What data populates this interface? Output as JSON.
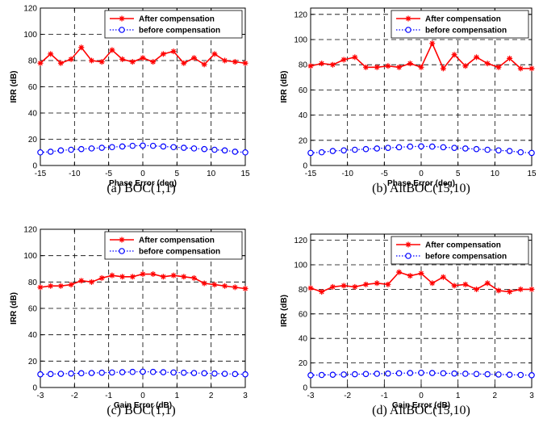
{
  "chart_data": [
    {
      "type": "line",
      "caption": "(a) BOC(1,1)",
      "xlabel": "Phase Error (deg)",
      "ylabel": "IRR (dB)",
      "xlim": [
        -15,
        15
      ],
      "ylim": [
        0,
        120
      ],
      "xticks": [
        -15,
        -10,
        -5,
        0,
        5,
        10,
        15
      ],
      "yticks": [
        0,
        20,
        40,
        60,
        80,
        100,
        120
      ],
      "grid": true,
      "legend_position": "top-right",
      "x": [
        -15,
        -13.5,
        -12,
        -10.5,
        -9,
        -7.5,
        -6,
        -4.5,
        -3,
        -1.5,
        0,
        1.5,
        3,
        4.5,
        6,
        7.5,
        9,
        10.5,
        12,
        13.5,
        15
      ],
      "series": [
        {
          "name": "After compensation",
          "color": "#ff0000",
          "marker": "star",
          "style": "solid",
          "values": [
            78,
            85,
            78,
            81,
            90,
            80,
            79,
            88,
            81,
            79,
            82,
            79,
            85,
            87,
            78,
            82,
            77,
            85,
            80,
            79,
            78
          ]
        },
        {
          "name": "before compensation",
          "color": "#0000ff",
          "marker": "circle",
          "style": "dotted",
          "values": [
            10,
            10.5,
            11.5,
            12,
            12.5,
            13,
            13.5,
            14,
            14.5,
            15,
            15.2,
            15,
            14.5,
            14,
            13.5,
            13,
            12.5,
            12,
            11.5,
            10.5,
            10
          ]
        }
      ]
    },
    {
      "type": "line",
      "caption": "(b) AltBOC(15,10)",
      "xlabel": "Phase Error (deg)",
      "ylabel": "IRR (dB)",
      "xlim": [
        -15,
        15
      ],
      "ylim": [
        0,
        125
      ],
      "xticks": [
        -15,
        -10,
        -5,
        0,
        5,
        10,
        15
      ],
      "yticks": [
        0,
        20,
        40,
        60,
        80,
        100,
        120
      ],
      "grid": true,
      "legend_position": "top-right",
      "x": [
        -15,
        -13.5,
        -12,
        -10.5,
        -9,
        -7.5,
        -6,
        -4.5,
        -3,
        -1.5,
        0,
        1.5,
        3,
        4.5,
        6,
        7.5,
        9,
        10.5,
        12,
        13.5,
        15
      ],
      "series": [
        {
          "name": "After compensation",
          "color": "#ff0000",
          "marker": "star",
          "style": "solid",
          "values": [
            79,
            81,
            80,
            84,
            86,
            78,
            78,
            79,
            78,
            81,
            78,
            97,
            77,
            88,
            79,
            86,
            81,
            78,
            85,
            77,
            77
          ]
        },
        {
          "name": "before compensation",
          "color": "#0000ff",
          "marker": "circle",
          "style": "dotted",
          "values": [
            10,
            10.5,
            11.5,
            12,
            12.5,
            13,
            13.5,
            14,
            14.5,
            15,
            15.2,
            15,
            14.5,
            14,
            13.5,
            13,
            12.5,
            12,
            11.5,
            10.5,
            10
          ]
        }
      ]
    },
    {
      "type": "line",
      "caption": "(c) BOC(1,1)",
      "xlabel": "Gain Error (dB)",
      "ylabel": "IRR (dB)",
      "xlim": [
        -3,
        3
      ],
      "ylim": [
        0,
        120
      ],
      "xticks": [
        -3,
        -2,
        -1,
        0,
        1,
        2,
        3
      ],
      "yticks": [
        0,
        20,
        40,
        60,
        80,
        100,
        120
      ],
      "grid": true,
      "legend_position": "top-right",
      "x": [
        -3,
        -2.7,
        -2.4,
        -2.1,
        -1.8,
        -1.5,
        -1.2,
        -0.9,
        -0.6,
        -0.3,
        0,
        0.3,
        0.6,
        0.9,
        1.2,
        1.5,
        1.8,
        2.1,
        2.4,
        2.7,
        3
      ],
      "series": [
        {
          "name": "After compensation",
          "color": "#ff0000",
          "marker": "star",
          "style": "solid",
          "values": [
            76,
            77,
            77,
            78,
            81,
            80,
            83,
            85,
            84,
            84,
            86,
            86,
            84,
            85,
            84,
            83,
            79,
            78,
            77,
            76,
            75
          ]
        },
        {
          "name": "before compensation",
          "color": "#0000ff",
          "marker": "circle",
          "style": "dotted",
          "values": [
            10,
            10.2,
            10.4,
            10.6,
            10.8,
            11,
            11.2,
            11.4,
            11.6,
            11.8,
            12,
            11.8,
            11.6,
            11.4,
            11.2,
            11,
            10.8,
            10.6,
            10.4,
            10.2,
            10
          ]
        }
      ]
    },
    {
      "type": "line",
      "caption": "(d) AltBOC(15,10)",
      "xlabel": "Gain Error (dB)",
      "ylabel": "IRR (dB)",
      "xlim": [
        -3,
        3
      ],
      "ylim": [
        0,
        125
      ],
      "xticks": [
        -3,
        -2,
        -1,
        0,
        1,
        2,
        3
      ],
      "yticks": [
        0,
        20,
        40,
        60,
        80,
        100,
        120
      ],
      "grid": true,
      "legend_position": "top-right",
      "x": [
        -3,
        -2.7,
        -2.4,
        -2.1,
        -1.8,
        -1.5,
        -1.2,
        -0.9,
        -0.6,
        -0.3,
        0,
        0.3,
        0.6,
        0.9,
        1.2,
        1.5,
        1.8,
        2.1,
        2.4,
        2.7,
        3
      ],
      "series": [
        {
          "name": "After compensation",
          "color": "#ff0000",
          "marker": "star",
          "style": "solid",
          "values": [
            81,
            78,
            82,
            83,
            82,
            84,
            85,
            84,
            94,
            91,
            93,
            85,
            90,
            83,
            84,
            80,
            85,
            79,
            78,
            80,
            80
          ]
        },
        {
          "name": "before compensation",
          "color": "#0000ff",
          "marker": "circle",
          "style": "dotted",
          "values": [
            10,
            10.2,
            10.4,
            10.6,
            10.8,
            11,
            11.2,
            11.4,
            11.6,
            11.8,
            12,
            11.8,
            11.6,
            11.4,
            11.2,
            11,
            10.8,
            10.6,
            10.4,
            10.2,
            10
          ]
        }
      ]
    }
  ]
}
